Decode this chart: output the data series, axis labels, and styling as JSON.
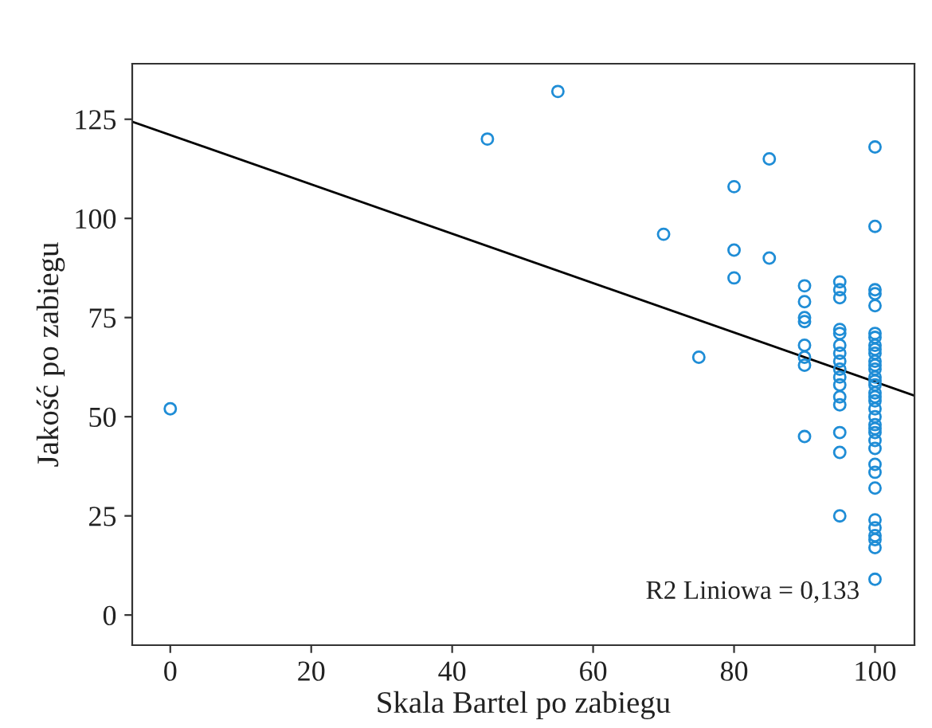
{
  "chart_data": {
    "type": "scatter",
    "xlabel": "Skala Bartel po zabiegu",
    "ylabel": "Jakość po zabiegu",
    "annotations": [
      "R2 Liniowa = 0,133"
    ],
    "xlim": [
      -5.4,
      105.6
    ],
    "ylim": [
      -7.6,
      139
    ],
    "xticks": [
      0,
      20,
      40,
      60,
      80,
      100
    ],
    "yticks": [
      0,
      25,
      50,
      75,
      100,
      125
    ],
    "grid": false,
    "legend": false,
    "series": [
      {
        "marker": "circle",
        "color": "#1f8dd6",
        "x": [
          0,
          45,
          55,
          70,
          75,
          80,
          80,
          80,
          85,
          85,
          90,
          90,
          90,
          90,
          90,
          90,
          90,
          90,
          95,
          95,
          95,
          95,
          95,
          95,
          95,
          95,
          95,
          95,
          95,
          95,
          95,
          95,
          95,
          95,
          100,
          100,
          100,
          100,
          100,
          100,
          100,
          100,
          100,
          100,
          100,
          100,
          100,
          100,
          100,
          100,
          100,
          100,
          100,
          100,
          100,
          100,
          100,
          100,
          100,
          100,
          100,
          100,
          100,
          100,
          100,
          100,
          100,
          100,
          100
        ],
        "values": [
          52,
          120,
          132,
          96,
          65,
          108,
          92,
          85,
          115,
          90,
          83,
          79,
          75,
          74,
          68,
          65,
          63,
          45,
          84,
          82,
          80,
          72,
          71,
          68,
          66,
          64,
          62,
          60,
          58,
          55,
          53,
          46,
          41,
          25,
          118,
          98,
          82,
          81,
          78,
          71,
          70,
          68,
          67,
          66,
          64,
          63,
          62,
          60,
          59,
          58,
          56,
          55,
          54,
          52,
          50,
          48,
          47,
          46,
          44,
          42,
          38,
          36,
          32,
          24,
          22,
          20,
          19,
          17,
          9
        ]
      },
      {
        "type": "line",
        "marker": "none",
        "color": "#000000",
        "x": [
          -5.4,
          105.6
        ],
        "values": [
          124.4,
          55.3
        ]
      }
    ]
  }
}
